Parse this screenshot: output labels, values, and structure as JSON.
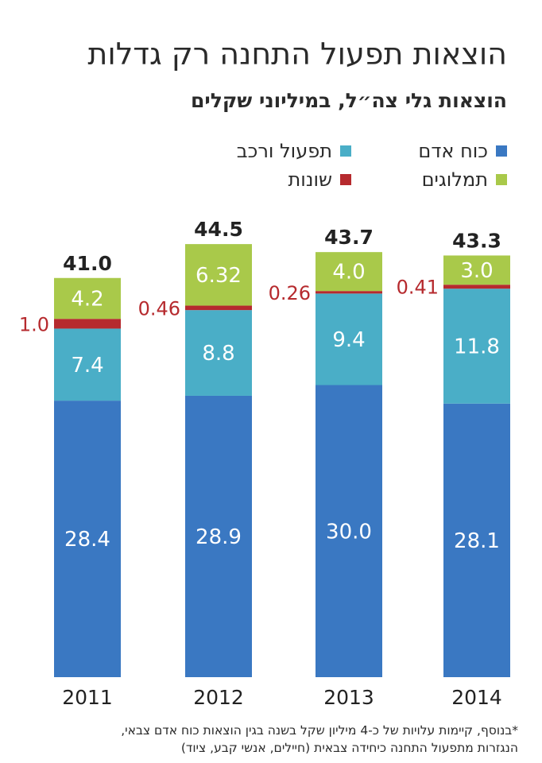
{
  "header": {
    "title": "הוצאות תפעול התחנה רק גדלות",
    "subtitle": "הוצאות גלי צה״ל, במיליוני שקלים"
  },
  "footnote": {
    "line1": "*בנוסף, קיימות עלויות של כ-4 מיליון שקל בשנה בגין הוצאות כוח אדם צבאי,",
    "line2": "הנגזרות מתפעול התחנה כיחידה צבאית (חיילים, אנשי קבע, ציוד)"
  },
  "chart_data": {
    "type": "bar",
    "stacked": true,
    "categories": [
      "2011",
      "2012",
      "2013",
      "2014"
    ],
    "totals": [
      "41.0",
      "44.5",
      "43.7",
      "43.3"
    ],
    "series": [
      {
        "name": "כוח אדם",
        "color": "#3a78c2",
        "values": [
          28.4,
          28.9,
          30.0,
          28.1
        ],
        "labels": [
          "28.4",
          "28.9",
          "30.0",
          "28.1"
        ]
      },
      {
        "name": "תפעול ורכב",
        "color": "#4aaec7",
        "values": [
          7.4,
          8.8,
          9.4,
          11.8
        ],
        "labels": [
          "7.4",
          "8.8",
          "9.4",
          "11.8"
        ]
      },
      {
        "name": "שונות",
        "color": "#b62a2e",
        "values": [
          1.0,
          0.46,
          0.26,
          0.41
        ],
        "labels": [
          "1.0",
          "0.46",
          "0.26",
          "0.41"
        ]
      },
      {
        "name": "תמלוגים",
        "color": "#a9c94a",
        "values": [
          4.2,
          6.32,
          4.0,
          3.0
        ],
        "labels": [
          "4.2",
          "6.32",
          "4.0",
          "3.0"
        ]
      }
    ],
    "legend_position": "top",
    "grid": false
  }
}
